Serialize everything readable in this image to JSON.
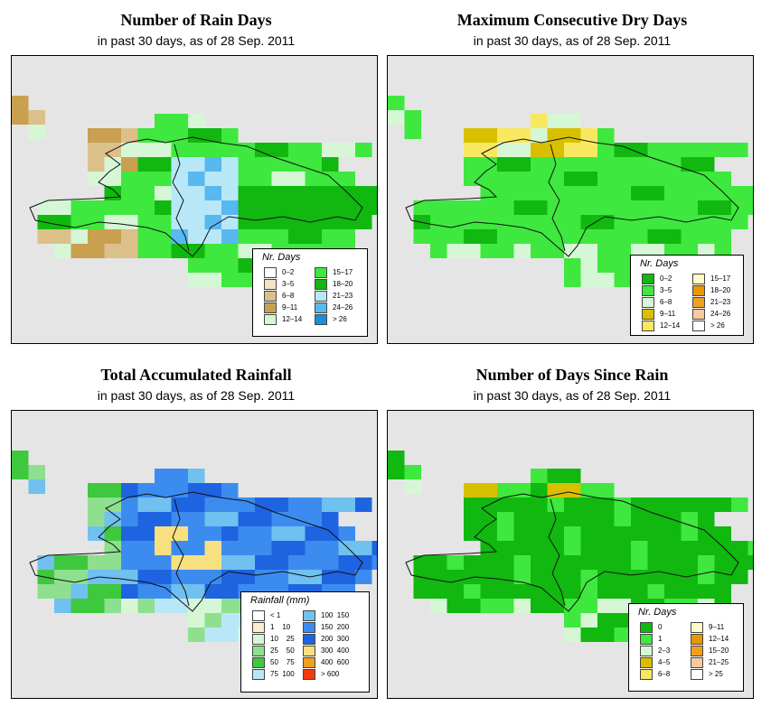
{
  "panels": [
    {
      "title": "Number of Rain Days",
      "subtitle": "in past 30 days, as of  28 Sep. 2011",
      "legend_title": "Nr. Days",
      "legend": [
        {
          "label": "0–2",
          "color": "#ffffff"
        },
        {
          "label": "3–5",
          "color": "#f2e4c4"
        },
        {
          "label": "6–8",
          "color": "#dcc08a"
        },
        {
          "label": "9–11",
          "color": "#c8a050"
        },
        {
          "label": "12–14",
          "color": "#d6f7d6"
        },
        {
          "label": "15–17",
          "color": "#3ee83e"
        },
        {
          "label": "18–20",
          "color": "#10b810"
        },
        {
          "label": "21–23",
          "color": "#b8e8f8"
        },
        {
          "label": "24–26",
          "color": "#58b8f0"
        },
        {
          "label": "> 26",
          "color": "#1890d8"
        }
      ]
    },
    {
      "title": "Maximum Consecutive Dry Days",
      "subtitle": "in past 30 days, as of  28 Sep. 2011",
      "legend_title": "Nr. Days",
      "legend": [
        {
          "label": "0–2",
          "color": "#10b810"
        },
        {
          "label": "3–5",
          "color": "#3ee83e"
        },
        {
          "label": "6–8",
          "color": "#d6f7d6"
        },
        {
          "label": "9–11",
          "color": "#d8c000"
        },
        {
          "label": "12–14",
          "color": "#f8e860"
        },
        {
          "label": "15–17",
          "color": "#fcfcc8"
        },
        {
          "label": "18–20",
          "color": "#e89800"
        },
        {
          "label": "21–23",
          "color": "#f0a020"
        },
        {
          "label": "24–26",
          "color": "#f8c8a0"
        },
        {
          "label": "> 26",
          "color": "#ffffff"
        }
      ]
    },
    {
      "title": "Total Accumulated Rainfall",
      "subtitle": "in past 30 days, as of  28 Sep. 2011",
      "legend_title": "Rainfall (mm)",
      "legend": [
        {
          "label": "< 1",
          "color": "#ffffff"
        },
        {
          "label": "1    10",
          "color": "#fcecd0"
        },
        {
          "label": "10    25",
          "color": "#d6f7d6"
        },
        {
          "label": "25    50",
          "color": "#8ee08e"
        },
        {
          "label": "50    75",
          "color": "#3ec83e"
        },
        {
          "label": "75  100",
          "color": "#b8e8f8"
        },
        {
          "label": "100  150",
          "color": "#70c0f0"
        },
        {
          "label": "150  200",
          "color": "#3c8cf0"
        },
        {
          "label": "200  300",
          "color": "#1e64e0"
        },
        {
          "label": "300  400",
          "color": "#f8e080"
        },
        {
          "label": "400  600",
          "color": "#f0a020"
        },
        {
          "label": "> 600",
          "color": "#f03c10"
        }
      ]
    },
    {
      "title": "Number of Days Since Rain",
      "subtitle": "in past 30 days, as of  28 Sep. 2011",
      "legend_title": "Nr. Days",
      "legend": [
        {
          "label": "0",
          "color": "#10b810"
        },
        {
          "label": "1",
          "color": "#3ee83e"
        },
        {
          "label": "2–3",
          "color": "#d6f7d6"
        },
        {
          "label": "4–5",
          "color": "#d8c000"
        },
        {
          "label": "6–8",
          "color": "#f8e860"
        },
        {
          "label": "9–11",
          "color": "#fcfcc8"
        },
        {
          "label": "12–14",
          "color": "#e89800"
        },
        {
          "label": "15–20",
          "color": "#f0a020"
        },
        {
          "label": "21–25",
          "color": "#f8c8a0"
        },
        {
          "label": "> 25",
          "color": "#ffffff"
        }
      ]
    }
  ]
}
